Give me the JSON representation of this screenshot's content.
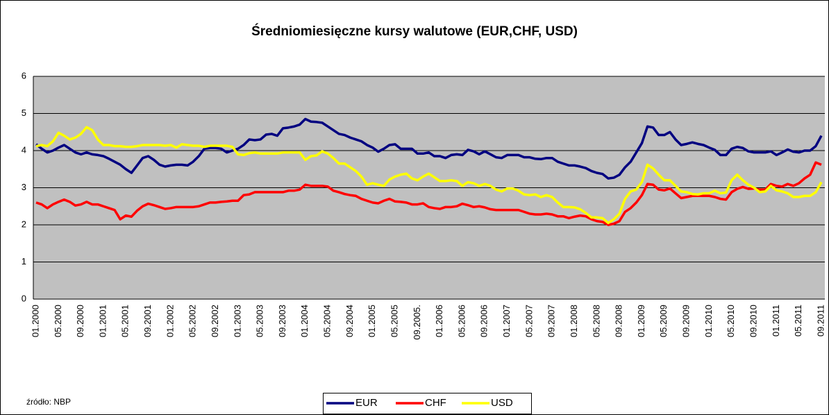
{
  "chart_data": {
    "type": "line",
    "title": "Średniomiesięczne kursy walutowe (EUR,CHF, USD)",
    "source": "źródło: NBP",
    "categories": [
      "01.2000",
      null,
      null,
      null,
      "05.2000",
      null,
      null,
      null,
      "09.2000",
      null,
      null,
      null,
      "01.2001",
      null,
      null,
      null,
      "05.2001",
      null,
      null,
      null,
      "09.2001",
      null,
      null,
      null,
      "01.2002",
      null,
      null,
      null,
      "05.2002",
      null,
      null,
      null,
      "09.2002",
      null,
      null,
      null,
      "01.2003",
      null,
      null,
      null,
      "05.2003",
      null,
      null,
      null,
      "09.2003",
      null,
      null,
      null,
      "01.2004",
      null,
      null,
      null,
      "05.2004",
      null,
      null,
      null,
      "09.2004",
      null,
      null,
      null,
      "01.2005",
      null,
      null,
      null,
      "05.2005",
      null,
      null,
      null,
      "09.2005.",
      null,
      null,
      null,
      "01.2006",
      null,
      null,
      null,
      "05.2006",
      null,
      null,
      null,
      "09.2006",
      null,
      null,
      null,
      "01.2007",
      null,
      null,
      null,
      "05.2007",
      null,
      null,
      null,
      "09.2007",
      null,
      null,
      null,
      "01.2008",
      null,
      null,
      null,
      "05.2008",
      null,
      null,
      null,
      "09.2008",
      null,
      null,
      null,
      "01.2009",
      null,
      null,
      null,
      "05.2009",
      null,
      null,
      null,
      "09.2009",
      null,
      null,
      null,
      "01.2010",
      null,
      null,
      null,
      "05.2010",
      null,
      null,
      null,
      "09.2010",
      null,
      null,
      null,
      "01.2011",
      null,
      null,
      null,
      "05.2011",
      null,
      null,
      null,
      "09.2011"
    ],
    "series": [
      {
        "name": "EUR",
        "color": "#000080",
        "values": [
          4.17,
          4.05,
          3.95,
          4.0,
          4.08,
          4.15,
          4.05,
          3.95,
          3.9,
          3.95,
          3.9,
          3.88,
          3.85,
          3.78,
          3.7,
          3.62,
          3.5,
          3.4,
          3.6,
          3.8,
          3.85,
          3.75,
          3.62,
          3.57,
          3.6,
          3.62,
          3.62,
          3.6,
          3.7,
          3.85,
          4.05,
          4.07,
          4.07,
          4.05,
          3.95,
          4.0,
          4.05,
          4.15,
          4.3,
          4.28,
          4.3,
          4.43,
          4.45,
          4.4,
          4.6,
          4.62,
          4.65,
          4.7,
          4.85,
          4.78,
          4.77,
          4.75,
          4.65,
          4.55,
          4.45,
          4.42,
          4.35,
          4.3,
          4.25,
          4.15,
          4.08,
          3.97,
          4.05,
          4.15,
          4.17,
          4.05,
          4.05,
          4.05,
          3.92,
          3.92,
          3.95,
          3.85,
          3.85,
          3.8,
          3.88,
          3.9,
          3.88,
          4.02,
          3.98,
          3.9,
          3.98,
          3.9,
          3.82,
          3.8,
          3.88,
          3.88,
          3.88,
          3.82,
          3.82,
          3.78,
          3.77,
          3.8,
          3.8,
          3.7,
          3.65,
          3.6,
          3.6,
          3.57,
          3.53,
          3.45,
          3.4,
          3.37,
          3.25,
          3.27,
          3.35,
          3.55,
          3.7,
          3.95,
          4.2,
          4.65,
          4.62,
          4.42,
          4.42,
          4.5,
          4.3,
          4.15,
          4.18,
          4.22,
          4.18,
          4.15,
          4.08,
          4.02,
          3.88,
          3.88,
          4.05,
          4.1,
          4.07,
          3.98,
          3.95,
          3.95,
          3.95,
          3.98,
          3.88,
          3.95,
          4.03,
          3.97,
          3.95,
          4.0,
          4.0,
          4.12,
          4.4
        ]
      },
      {
        "name": "CHF",
        "color": "#ff0000",
        "values": [
          2.6,
          2.55,
          2.45,
          2.55,
          2.62,
          2.68,
          2.62,
          2.52,
          2.55,
          2.62,
          2.55,
          2.55,
          2.5,
          2.45,
          2.4,
          2.15,
          2.25,
          2.22,
          2.38,
          2.5,
          2.57,
          2.53,
          2.48,
          2.43,
          2.45,
          2.48,
          2.48,
          2.48,
          2.48,
          2.5,
          2.55,
          2.6,
          2.6,
          2.62,
          2.63,
          2.65,
          2.65,
          2.8,
          2.82,
          2.88,
          2.88,
          2.88,
          2.88,
          2.88,
          2.88,
          2.92,
          2.92,
          2.95,
          3.08,
          3.05,
          3.05,
          3.05,
          3.03,
          2.92,
          2.88,
          2.83,
          2.8,
          2.78,
          2.7,
          2.65,
          2.6,
          2.58,
          2.65,
          2.7,
          2.63,
          2.62,
          2.6,
          2.55,
          2.55,
          2.58,
          2.48,
          2.45,
          2.43,
          2.48,
          2.48,
          2.5,
          2.57,
          2.53,
          2.48,
          2.5,
          2.47,
          2.42,
          2.4,
          2.4,
          2.4,
          2.4,
          2.4,
          2.35,
          2.3,
          2.28,
          2.28,
          2.3,
          2.28,
          2.23,
          2.23,
          2.18,
          2.22,
          2.25,
          2.23,
          2.15,
          2.1,
          2.08,
          2.0,
          2.03,
          2.1,
          2.35,
          2.45,
          2.6,
          2.8,
          3.1,
          3.08,
          2.95,
          2.93,
          2.98,
          2.85,
          2.72,
          2.75,
          2.78,
          2.78,
          2.78,
          2.78,
          2.75,
          2.7,
          2.68,
          2.88,
          2.97,
          3.02,
          2.97,
          2.98,
          2.95,
          2.95,
          3.1,
          3.05,
          3.03,
          3.1,
          3.05,
          3.12,
          3.25,
          3.35,
          3.68,
          3.62
        ]
      },
      {
        "name": "USD",
        "color": "#ffff00",
        "values": [
          4.12,
          4.15,
          4.12,
          4.25,
          4.48,
          4.4,
          4.3,
          4.35,
          4.45,
          4.63,
          4.55,
          4.3,
          4.15,
          4.15,
          4.12,
          4.12,
          4.1,
          4.1,
          4.12,
          4.15,
          4.15,
          4.15,
          4.15,
          4.13,
          4.15,
          4.08,
          4.17,
          4.15,
          4.13,
          4.13,
          4.1,
          4.13,
          4.13,
          4.13,
          4.13,
          4.1,
          3.9,
          3.88,
          3.93,
          3.95,
          3.92,
          3.92,
          3.92,
          3.92,
          3.95,
          3.95,
          3.95,
          3.95,
          3.75,
          3.85,
          3.87,
          3.98,
          3.92,
          3.8,
          3.65,
          3.65,
          3.55,
          3.45,
          3.3,
          3.08,
          3.12,
          3.08,
          3.05,
          3.22,
          3.3,
          3.35,
          3.38,
          3.25,
          3.2,
          3.3,
          3.38,
          3.28,
          3.18,
          3.18,
          3.2,
          3.18,
          3.05,
          3.15,
          3.12,
          3.05,
          3.1,
          3.05,
          2.95,
          2.9,
          2.98,
          2.98,
          2.92,
          2.82,
          2.8,
          2.82,
          2.75,
          2.8,
          2.75,
          2.6,
          2.48,
          2.48,
          2.47,
          2.42,
          2.32,
          2.2,
          2.2,
          2.18,
          2.05,
          2.15,
          2.3,
          2.7,
          2.9,
          2.95,
          3.15,
          3.62,
          3.52,
          3.35,
          3.2,
          3.2,
          3.05,
          2.9,
          2.88,
          2.83,
          2.82,
          2.85,
          2.85,
          2.92,
          2.85,
          2.87,
          3.2,
          3.35,
          3.2,
          3.08,
          3.0,
          2.88,
          2.9,
          3.05,
          2.93,
          2.9,
          2.85,
          2.75,
          2.75,
          2.78,
          2.78,
          2.88,
          3.15
        ]
      }
    ],
    "ylim": [
      0,
      6
    ],
    "yticks": [
      0,
      1,
      2,
      3,
      4,
      5,
      6
    ],
    "grid": true,
    "legend": "bottom"
  }
}
